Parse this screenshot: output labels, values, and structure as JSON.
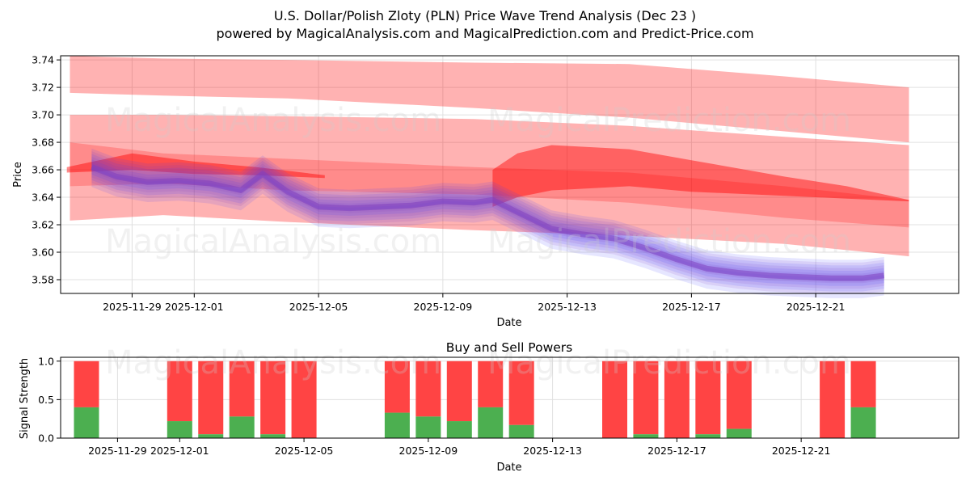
{
  "title_line1": "U.S. Dollar/Polish Zloty (PLN) Price Wave Trend Analysis (Dec 23 )",
  "title_line2": "powered by MagicalAnalysis.com and MagicalPrediction.com and Predict-Price.com",
  "watermarks": [
    "MagicalAnalysis.com",
    "MagicalPrediction.com"
  ],
  "colors": {
    "red_band": "#ff0000",
    "blue_band": "#3a3aff",
    "purple": "#8040c0",
    "buy": "#4caf50",
    "sell": "#ff4444",
    "grid": "#e0e0e0"
  },
  "chart_data": [
    {
      "type": "area",
      "name": "price-wave",
      "ylabel": "Price",
      "xlabel": "Date",
      "ylim": [
        3.57,
        3.743
      ],
      "xlim_days": [
        -3.3,
        25.6
      ],
      "yticks": [
        "3.58",
        "3.60",
        "3.62",
        "3.64",
        "3.66",
        "3.68",
        "3.70",
        "3.72",
        "3.74"
      ],
      "xticks": [
        "2025-11-29",
        "2025-12-01",
        "2025-12-05",
        "2025-12-09",
        "2025-12-13",
        "2025-12-17",
        "2025-12-21"
      ],
      "xtick_days": [
        -1,
        1,
        5,
        9,
        13,
        17,
        21
      ],
      "date_origin": "2025-11-30",
      "grid": true,
      "prediction_bands": [
        {
          "x": [
            -3,
            0,
            4,
            10,
            15,
            20,
            24
          ],
          "upper": [
            3.743,
            3.741,
            3.74,
            3.738,
            3.737,
            3.728,
            3.72
          ],
          "lower": [
            3.716,
            3.714,
            3.712,
            3.705,
            3.698,
            3.688,
            3.68
          ],
          "opacity": 0.3
        },
        {
          "x": [
            -3,
            0,
            4,
            10,
            15,
            20,
            24
          ],
          "upper": [
            3.7,
            3.7,
            3.699,
            3.697,
            3.692,
            3.684,
            3.678
          ],
          "lower": [
            3.623,
            3.627,
            3.622,
            3.616,
            3.612,
            3.606,
            3.597
          ],
          "opacity": 0.3
        },
        {
          "x": [
            -3,
            0,
            4,
            10,
            15,
            20,
            24
          ],
          "upper": [
            3.68,
            3.672,
            3.668,
            3.662,
            3.658,
            3.648,
            3.638
          ],
          "lower": [
            3.648,
            3.65,
            3.645,
            3.642,
            3.636,
            3.625,
            3.618
          ],
          "opacity": 0.22
        },
        {
          "x": [
            10.6,
            11.4,
            12.5,
            15,
            17,
            20,
            22,
            24
          ],
          "upper": [
            3.66,
            3.672,
            3.678,
            3.675,
            3.667,
            3.655,
            3.648,
            3.638
          ],
          "lower": [
            3.633,
            3.64,
            3.645,
            3.648,
            3.644,
            3.641,
            3.639,
            3.637
          ],
          "opacity": 0.45
        },
        {
          "x": [
            -3.1,
            -1,
            1,
            3,
            5.2
          ],
          "upper": [
            3.662,
            3.672,
            3.666,
            3.662,
            3.656
          ],
          "lower": [
            3.658,
            3.66,
            3.657,
            3.656,
            3.654
          ],
          "opacity": 0.45
        }
      ],
      "price_waves": {
        "x": [
          -2.3,
          -1.5,
          -0.5,
          0.5,
          1.5,
          2.5,
          3.2,
          4,
          5,
          6,
          7,
          8,
          9,
          10,
          10.6,
          11.5,
          12.5,
          13.5,
          14.5,
          15.5,
          16.5,
          17.5,
          18.5,
          19.5,
          20.5,
          21.5,
          22.5,
          23.2
        ],
        "center": [
          3.662,
          3.655,
          3.651,
          3.652,
          3.65,
          3.645,
          3.657,
          3.644,
          3.633,
          3.632,
          3.633,
          3.634,
          3.637,
          3.636,
          3.638,
          3.628,
          3.617,
          3.613,
          3.61,
          3.603,
          3.595,
          3.588,
          3.585,
          3.583,
          3.582,
          3.581,
          3.581,
          3.583
        ],
        "offsets": [
          -0.007,
          -0.004,
          -0.002,
          0,
          0.002,
          0.004,
          0.006
        ],
        "half_width": 0.0075
      }
    },
    {
      "type": "bar",
      "name": "buy-sell-powers",
      "title": "Buy and Sell Powers",
      "ylabel": "Signal Strength",
      "xlabel": "Date",
      "ylim": [
        0,
        1.05
      ],
      "yticks": [
        "0.0",
        "0.5",
        "1.0"
      ],
      "xticks": [
        "2025-11-29",
        "2025-12-01",
        "2025-12-05",
        "2025-12-09",
        "2025-12-13",
        "2025-12-17",
        "2025-12-21"
      ],
      "xtick_days": [
        -1,
        1,
        5,
        9,
        13,
        17,
        21
      ],
      "xlim_days": [
        -3.3,
        25.6
      ],
      "x": [
        -2,
        1,
        2,
        3,
        4,
        5,
        8,
        9,
        10,
        11,
        12,
        15,
        16,
        17,
        18,
        19,
        22,
        23
      ],
      "buy": [
        0.4,
        0.22,
        0.05,
        0.28,
        0.05,
        0.0,
        0.33,
        0.28,
        0.22,
        0.4,
        0.17,
        0.0,
        0.05,
        0.0,
        0.05,
        0.12,
        0.0,
        0.4
      ],
      "total": [
        1,
        1,
        1,
        1,
        1,
        1,
        1,
        1,
        1,
        1,
        1,
        1,
        1,
        1,
        1,
        1,
        1,
        1
      ]
    }
  ]
}
